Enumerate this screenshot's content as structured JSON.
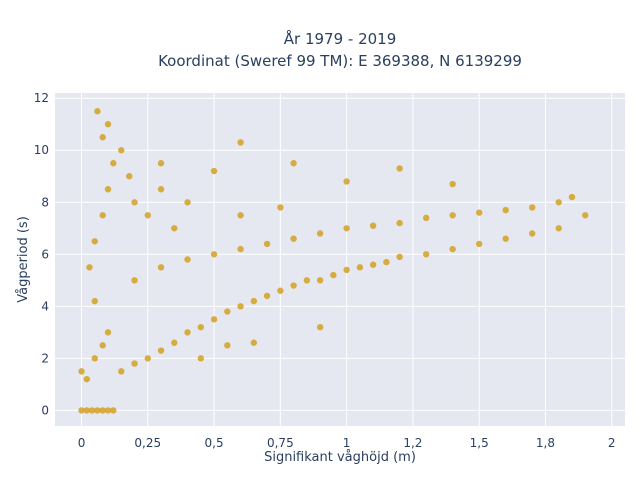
{
  "chart_data": {
    "type": "scatter",
    "title_lines": [
      "År 1979 - 2019",
      "Koordinat (Sweref 99 TM): E 369388, N 6139299"
    ],
    "xlabel": "Signifikant våghöjd (m)",
    "ylabel": "Vågperiod (s)",
    "xlim": [
      -0.1,
      2.05
    ],
    "ylim": [
      -0.6,
      12.2
    ],
    "x_ticks": [
      0,
      0.25,
      0.5,
      0.75,
      1,
      1.25,
      1.5,
      1.75,
      2
    ],
    "x_tick_labels": [
      "0",
      "0,25",
      "0,5",
      "0,75",
      "1",
      "1,2",
      "1,5",
      "1,8",
      "2"
    ],
    "y_ticks": [
      0,
      2,
      4,
      6,
      8,
      10,
      12
    ],
    "y_tick_labels": [
      "0",
      "2",
      "4",
      "6",
      "8",
      "10",
      "12"
    ],
    "grid": true,
    "marker_color": "#d4a020",
    "plot_background": "#e5e8f0",
    "series": [
      {
        "points": [
          [
            0,
            0
          ],
          [
            0.02,
            0
          ],
          [
            0.04,
            0
          ],
          [
            0.06,
            0
          ],
          [
            0.08,
            0
          ],
          [
            0.1,
            0
          ],
          [
            0.12,
            0
          ],
          [
            0.0,
            1.5
          ],
          [
            0.02,
            1.2
          ],
          [
            0.05,
            2.0
          ],
          [
            0.08,
            2.5
          ],
          [
            0.1,
            3.0
          ],
          [
            0.05,
            4.2
          ],
          [
            0.03,
            5.5
          ],
          [
            0.05,
            6.5
          ],
          [
            0.08,
            7.5
          ],
          [
            0.1,
            8.5
          ],
          [
            0.12,
            9.5
          ],
          [
            0.08,
            10.5
          ],
          [
            0.06,
            11.5
          ],
          [
            0.1,
            11.0
          ],
          [
            0.15,
            10.0
          ],
          [
            0.18,
            9.0
          ],
          [
            0.2,
            8.0
          ],
          [
            0.25,
            7.5
          ],
          [
            0.3,
            8.5
          ],
          [
            0.35,
            7.0
          ],
          [
            0.4,
            8.0
          ],
          [
            0.15,
            1.5
          ],
          [
            0.2,
            1.8
          ],
          [
            0.25,
            2.0
          ],
          [
            0.3,
            2.3
          ],
          [
            0.35,
            2.6
          ],
          [
            0.4,
            3.0
          ],
          [
            0.45,
            3.2
          ],
          [
            0.5,
            3.5
          ],
          [
            0.55,
            3.8
          ],
          [
            0.6,
            4.0
          ],
          [
            0.65,
            4.2
          ],
          [
            0.7,
            4.4
          ],
          [
            0.75,
            4.6
          ],
          [
            0.8,
            4.8
          ],
          [
            0.85,
            5.0
          ],
          [
            0.9,
            5.0
          ],
          [
            0.95,
            5.2
          ],
          [
            1.0,
            5.4
          ],
          [
            1.05,
            5.5
          ],
          [
            1.1,
            5.6
          ],
          [
            1.15,
            5.7
          ],
          [
            1.2,
            5.9
          ],
          [
            1.3,
            6.0
          ],
          [
            1.4,
            6.2
          ],
          [
            1.5,
            6.4
          ],
          [
            1.6,
            6.6
          ],
          [
            1.7,
            6.8
          ],
          [
            1.8,
            7.0
          ],
          [
            1.9,
            7.5
          ],
          [
            0.2,
            5.0
          ],
          [
            0.3,
            5.5
          ],
          [
            0.4,
            5.8
          ],
          [
            0.5,
            6.0
          ],
          [
            0.6,
            6.2
          ],
          [
            0.7,
            6.4
          ],
          [
            0.8,
            6.6
          ],
          [
            0.9,
            6.8
          ],
          [
            1.0,
            7.0
          ],
          [
            1.1,
            7.1
          ],
          [
            1.2,
            7.2
          ],
          [
            1.3,
            7.4
          ],
          [
            1.4,
            7.5
          ],
          [
            1.5,
            7.6
          ],
          [
            1.6,
            7.7
          ],
          [
            1.7,
            7.8
          ],
          [
            1.8,
            8.0
          ],
          [
            1.85,
            8.2
          ],
          [
            0.3,
            9.5
          ],
          [
            0.5,
            9.2
          ],
          [
            0.6,
            10.3
          ],
          [
            0.8,
            9.5
          ],
          [
            1.0,
            8.8
          ],
          [
            1.2,
            9.3
          ],
          [
            1.4,
            8.7
          ],
          [
            0.45,
            2.0
          ],
          [
            0.55,
            2.5
          ],
          [
            0.65,
            2.6
          ],
          [
            0.9,
            3.2
          ],
          [
            0.6,
            7.5
          ],
          [
            0.75,
            7.8
          ]
        ]
      }
    ]
  }
}
